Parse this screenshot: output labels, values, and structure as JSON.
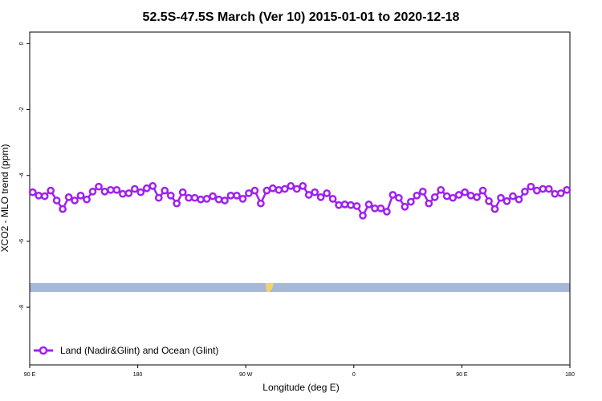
{
  "chart_data": {
    "type": "line",
    "title": "52.5S-47.5S March (Ver 10)   2015-01-01 to 2020-12-18",
    "x_label": "Longitude (deg E)",
    "y_label": "XCO2 - MLO trend (ppm)",
    "xlim": [
      90,
      540
    ],
    "ylim": [
      -9.75,
      0.35
    ],
    "xticks": [
      {
        "value": 90,
        "label": "90 E"
      },
      180,
      {
        "value": 270,
        "label": "90 W"
      },
      {
        "value": 360,
        "label": "0"
      },
      {
        "value": 450,
        "label": "90 E"
      },
      {
        "value": 540,
        "label": "180"
      }
    ],
    "yticks": [
      0,
      -2,
      -4,
      -6,
      -8
    ],
    "legend": "bottom-left",
    "x": [
      92.5,
      97.5,
      102.5,
      107.5,
      112.5,
      117.5,
      122.5,
      127.5,
      132.5,
      137.5,
      142.5,
      147.5,
      152.5,
      157.5,
      162.5,
      167.5,
      172.5,
      177.5,
      182.5,
      187.5,
      192.5,
      197.5,
      202.5,
      207.5,
      212.5,
      217.5,
      222.5,
      227.5,
      232.5,
      237.5,
      242.5,
      247.5,
      252.5,
      257.5,
      262.5,
      267.5,
      272.5,
      277.5,
      282.5,
      287.5,
      292.5,
      297.5,
      302.5,
      307.5,
      312.5,
      317.5,
      322.5,
      327.5,
      332.5,
      337.5,
      342.5,
      347.5,
      352.5,
      357.5,
      362.5,
      367.5,
      372.5,
      377.5,
      382.5,
      387.5,
      392.5,
      397.5,
      402.5,
      407.5,
      412.5,
      417.5,
      422.5,
      427.5,
      432.5,
      437.5,
      442.5,
      447.5,
      452.5,
      457.5,
      462.5,
      467.5,
      472.5,
      477.5,
      482.5,
      487.5,
      492.5,
      497.5,
      502.5,
      507.5,
      512.5,
      517.5,
      522.5,
      527.5,
      532.5,
      537.5
    ],
    "series": [
      {
        "name": "Land (Nadir&Glint) and Ocean (Glint)",
        "color": "#a020f0",
        "values": [
          -4.51,
          -4.61,
          -4.63,
          -4.46,
          -4.76,
          -5.02,
          -4.66,
          -4.76,
          -4.61,
          -4.73,
          -4.49,
          -4.34,
          -4.49,
          -4.44,
          -4.44,
          -4.56,
          -4.54,
          -4.41,
          -4.51,
          -4.39,
          -4.32,
          -4.68,
          -4.46,
          -4.61,
          -4.85,
          -4.51,
          -4.68,
          -4.68,
          -4.73,
          -4.71,
          -4.63,
          -4.73,
          -4.76,
          -4.61,
          -4.61,
          -4.71,
          -4.54,
          -4.46,
          -4.85,
          -4.46,
          -4.39,
          -4.44,
          -4.41,
          -4.32,
          -4.41,
          -4.32,
          -4.59,
          -4.51,
          -4.66,
          -4.54,
          -4.71,
          -4.9,
          -4.88,
          -4.9,
          -4.93,
          -5.22,
          -4.88,
          -5.0,
          -5.0,
          -5.1,
          -4.59,
          -4.68,
          -4.95,
          -4.8,
          -4.61,
          -4.49,
          -4.85,
          -4.66,
          -4.44,
          -4.63,
          -4.68,
          -4.59,
          -4.51,
          -4.61,
          -4.66,
          -4.46,
          -4.78,
          -5.02,
          -4.68,
          -4.78,
          -4.63,
          -4.73,
          -4.49,
          -4.34,
          -4.46,
          -4.41,
          -4.41,
          -4.56,
          -4.54,
          -4.44
        ]
      }
    ]
  }
}
